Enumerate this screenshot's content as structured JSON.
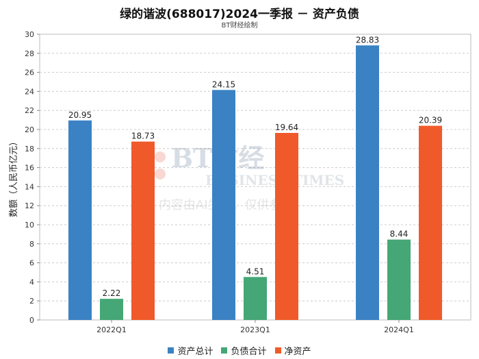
{
  "chart_data": {
    "type": "bar",
    "title": "绿的谐波(688017)2024一季报 － 资产负债",
    "subtitle": "BT财经绘制",
    "ylabel": "数额（人民币亿元）",
    "xlabel": "",
    "ylim": [
      0,
      30
    ],
    "yticks": [
      0,
      2,
      4,
      6,
      8,
      10,
      12,
      14,
      16,
      18,
      20,
      22,
      24,
      26,
      28,
      30
    ],
    "grid": true,
    "legend_position": "bottom",
    "categories": [
      "2022Q1",
      "2023Q1",
      "2024Q1"
    ],
    "series": [
      {
        "name": "资产总计",
        "color": "#3b82c4",
        "values": [
          20.95,
          24.15,
          28.83
        ]
      },
      {
        "name": "负债合计",
        "color": "#45a775",
        "values": [
          2.22,
          4.51,
          8.44
        ]
      },
      {
        "name": "净资产",
        "color": "#f05a2a",
        "values": [
          18.73,
          19.64,
          20.39
        ]
      }
    ]
  },
  "watermark": {
    "logo_text": "BT财经",
    "logo_sub": "BUSINESS TIMES",
    "notice": "内容由AI生成，仅供参考"
  }
}
